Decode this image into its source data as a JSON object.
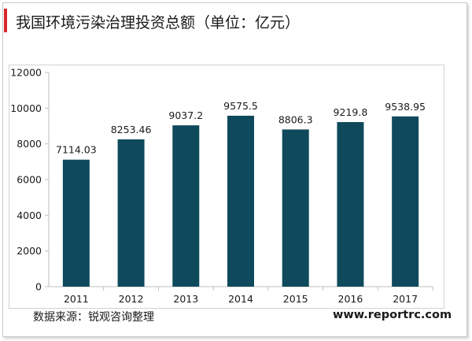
{
  "header": {
    "title": "我国环境污染治理投资总额（单位：亿元）"
  },
  "footer": {
    "source": "数据来源：锐观咨询整理",
    "website": "www.reportrc.com"
  },
  "colors": {
    "bar": "#0f4a5c",
    "accent": "#d7262c",
    "axis": "#bfbfbf",
    "text": "#1a1a1a"
  },
  "chart_data": {
    "type": "bar",
    "title": "我国环境污染治理投资总额（单位：亿元）",
    "categories": [
      "2011",
      "2012",
      "2013",
      "2014",
      "2015",
      "2016",
      "2017"
    ],
    "values": [
      7114.03,
      8253.46,
      9037.2,
      9575.5,
      8806.3,
      9219.8,
      9538.95
    ],
    "data_labels": [
      "7114.03",
      "8253.46",
      "9037.2",
      "9575.5",
      "8806.3",
      "9219.8",
      "9538.95"
    ],
    "y_ticks": [
      "0",
      "2000",
      "4000",
      "6000",
      "8000",
      "10000",
      "12000"
    ],
    "ylim": [
      0,
      12000
    ],
    "xlabel": "",
    "ylabel": "",
    "grid": false,
    "legend": "none"
  }
}
